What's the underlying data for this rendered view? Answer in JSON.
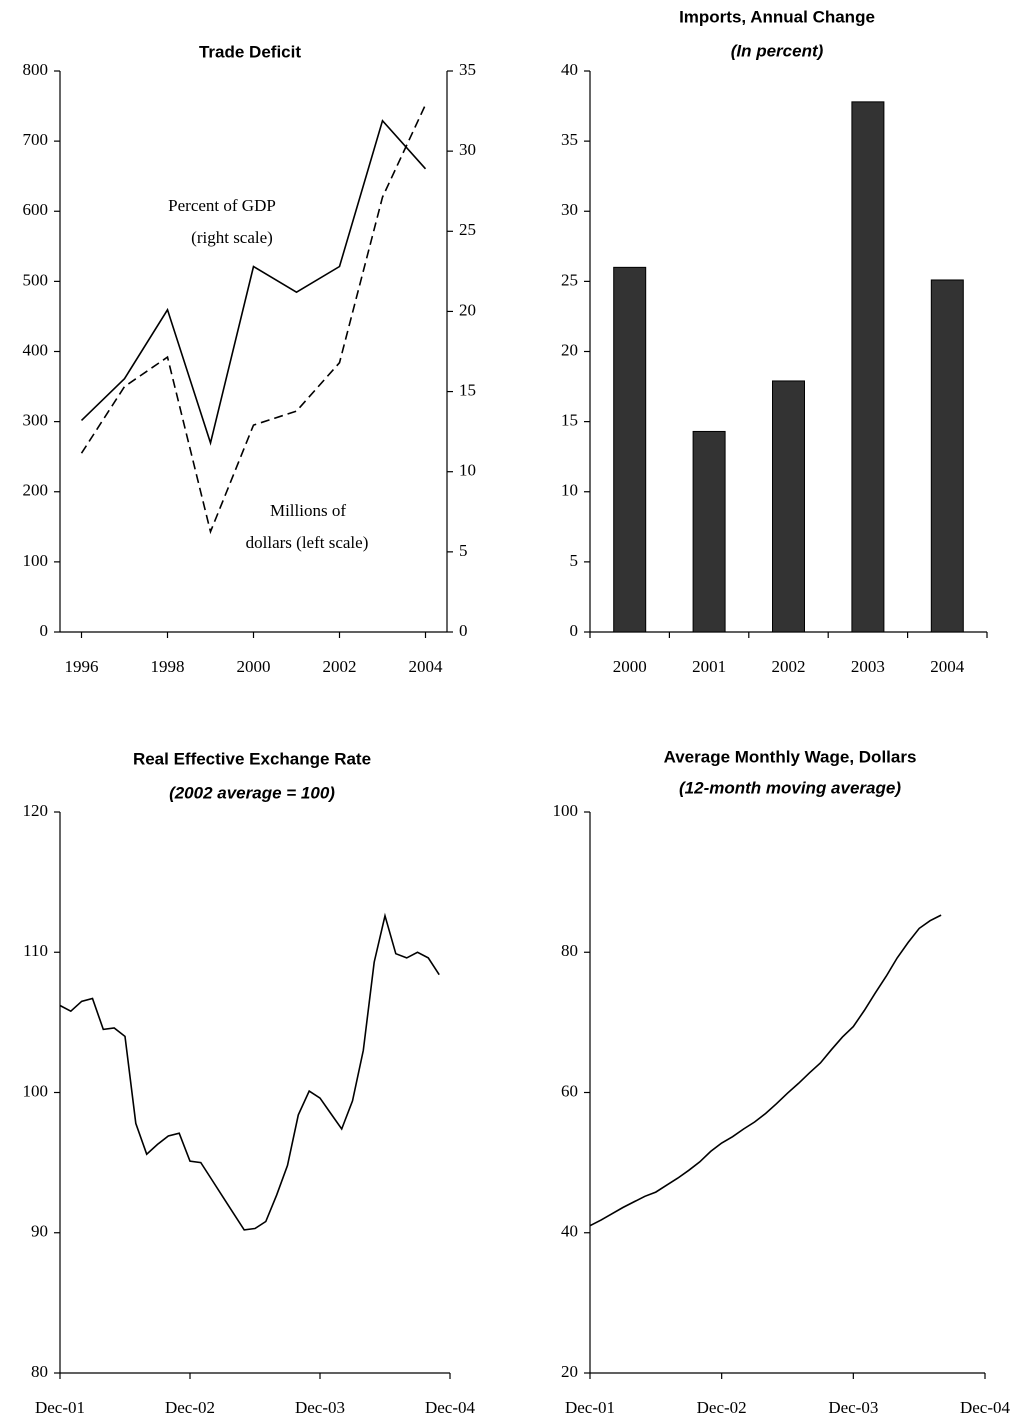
{
  "chart_data": [
    {
      "type": "line",
      "title": "Trade Deficit",
      "x": [
        1996,
        1997,
        1998,
        1999,
        2000,
        2001,
        2002,
        2003,
        2004
      ],
      "xlim": [
        1995.5,
        2004.5
      ],
      "xticks": [
        1996,
        1998,
        2000,
        2002,
        2004
      ],
      "ylim": [
        0,
        800
      ],
      "yticks": [
        0,
        100,
        200,
        300,
        400,
        500,
        600,
        700,
        800
      ],
      "y2lim": [
        0,
        35
      ],
      "y2ticks": [
        0,
        5,
        10,
        15,
        20,
        25,
        30,
        35
      ],
      "annotations": [
        "Percent of GDP",
        "(right scale)",
        "Millions of",
        "dollars (left scale)"
      ],
      "series": [
        {
          "color": "#000000",
          "dash": false,
          "axis": "y2",
          "values": [
            13.2,
            15.8,
            20.1,
            11.8,
            22.8,
            21.2,
            22.8,
            31.9,
            28.9
          ]
        },
        {
          "color": "#000000",
          "dash": true,
          "values": [
            255,
            350,
            392,
            143,
            295,
            315,
            384,
            620,
            752
          ]
        }
      ]
    },
    {
      "type": "bar",
      "title": "Imports, Annual Change",
      "subtitle": "(In percent)",
      "categories": [
        "2000",
        "2001",
        "2002",
        "2003",
        "2004"
      ],
      "values": [
        26.0,
        14.3,
        17.9,
        37.8,
        25.1
      ],
      "color": "#333333",
      "ylim": [
        0,
        40
      ],
      "yticks": [
        0,
        5,
        10,
        15,
        20,
        25,
        30,
        35,
        40
      ]
    },
    {
      "type": "line",
      "title": "Real Effective Exchange Rate",
      "subtitle": "(2002 average = 100)",
      "x": [
        "Dec-01",
        "Jan-02",
        "Feb-02",
        "Mar-02",
        "Apr-02",
        "May-02",
        "Jun-02",
        "Jul-02",
        "Aug-02",
        "Sep-02",
        "Oct-02",
        "Nov-02",
        "Dec-02",
        "Jan-03",
        "Feb-03",
        "Mar-03",
        "Apr-03",
        "May-03",
        "Jun-03",
        "Jul-03",
        "Aug-03",
        "Sep-03",
        "Oct-03",
        "Nov-03",
        "Dec-03",
        "Jan-04",
        "Feb-04",
        "Mar-04",
        "Apr-04",
        "May-04",
        "Jun-04",
        "Jul-04",
        "Aug-04",
        "Sep-04",
        "Oct-04",
        "Nov-04"
      ],
      "xlim": [
        "Dec-01",
        "Dec-04"
      ],
      "xticks": [
        "Dec-01",
        "Dec-02",
        "Dec-03",
        "Dec-04"
      ],
      "ylim": [
        80,
        120
      ],
      "yticks": [
        80,
        90,
        100,
        110,
        120
      ],
      "series": [
        {
          "color": "#000000",
          "dash": false,
          "values": [
            106.2,
            105.8,
            106.5,
            106.7,
            104.5,
            104.6,
            104,
            97.8,
            95.6,
            96.3,
            96.9,
            97.1,
            95.1,
            95,
            93.8,
            92.6,
            91.4,
            90.2,
            90.3,
            90.8,
            92.7,
            94.8,
            98.4,
            100.1,
            99.6,
            98.5,
            97.4,
            99.4,
            103,
            109.3,
            112.6,
            109.9,
            109.6,
            110,
            109.6,
            108.4
          ]
        }
      ]
    },
    {
      "type": "line",
      "title": "Average Monthly Wage, Dollars",
      "subtitle": "(12-month moving average)",
      "x": [
        "Dec-01",
        "Jan-02",
        "Feb-02",
        "Mar-02",
        "Apr-02",
        "May-02",
        "Jun-02",
        "Jul-02",
        "Aug-02",
        "Sep-02",
        "Oct-02",
        "Nov-02",
        "Dec-02",
        "Jan-03",
        "Feb-03",
        "Mar-03",
        "Apr-03",
        "May-03",
        "Jun-03",
        "Jul-03",
        "Aug-03",
        "Sep-03",
        "Oct-03",
        "Nov-03",
        "Dec-03",
        "Jan-04",
        "Feb-04",
        "Mar-04",
        "Apr-04",
        "May-04",
        "Jun-04",
        "Jul-04",
        "Aug-04"
      ],
      "xlim": [
        "Dec-01",
        "Dec-04"
      ],
      "xticks": [
        "Dec-01",
        "Dec-02",
        "Dec-03",
        "Dec-04"
      ],
      "ylim": [
        20,
        100
      ],
      "yticks": [
        20,
        40,
        60,
        80,
        100
      ],
      "series": [
        {
          "color": "#000000",
          "dash": false,
          "values": [
            41.0,
            41.8,
            42.7,
            43.6,
            44.4,
            45.2,
            45.8,
            46.8,
            47.8,
            48.9,
            50.1,
            51.6,
            52.8,
            53.7,
            54.8,
            55.8,
            57.0,
            58.4,
            59.9,
            61.3,
            62.8,
            64.2,
            66.1,
            67.9,
            69.4,
            71.7,
            74.2,
            76.6,
            79.2,
            81.4,
            83.4,
            84.5,
            85.3
          ]
        }
      ]
    }
  ]
}
